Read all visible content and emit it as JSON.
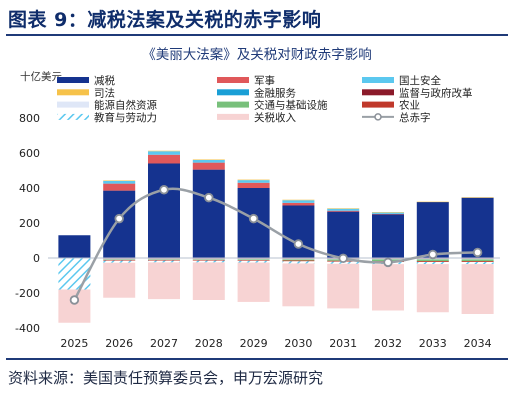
{
  "header": {
    "title": "图表 9：减税法案及关税的赤字影响"
  },
  "footer": {
    "source": "资料来源：美国责任预算委员会，申万宏源研究"
  },
  "chart_data": {
    "type": "bar",
    "title": "《美丽大法案》及关税对财政赤字影响",
    "ylabel": "十亿美元",
    "ylim": [
      -400,
      800
    ],
    "yticks": [
      -400,
      -200,
      0,
      200,
      400,
      600,
      800
    ],
    "categories": [
      "2025",
      "2026",
      "2027",
      "2028",
      "2029",
      "2030",
      "2031",
      "2032",
      "2033",
      "2034"
    ],
    "legend_position": "top",
    "series": [
      {
        "name": "减税",
        "color": "#15338f",
        "pattern": "solid",
        "values": [
          130,
          385,
          540,
          505,
          400,
          300,
          265,
          250,
          320,
          345
        ]
      },
      {
        "name": "军事",
        "color": "#e0585a",
        "pattern": "solid",
        "values": [
          0,
          40,
          50,
          40,
          30,
          15,
          5,
          2,
          0,
          0
        ]
      },
      {
        "name": "国土安全",
        "color": "#5bc8ef",
        "pattern": "solid",
        "values": [
          0,
          15,
          20,
          15,
          15,
          15,
          12,
          8,
          0,
          0
        ]
      },
      {
        "name": "司法",
        "color": "#f6c24a",
        "pattern": "solid",
        "values": [
          0,
          3,
          3,
          3,
          3,
          3,
          2,
          2,
          2,
          2
        ]
      },
      {
        "name": "金融服务",
        "color": "#1a9fd6",
        "pattern": "solid",
        "values": [
          0,
          -2,
          -2,
          -2,
          -2,
          -2,
          -2,
          -2,
          -2,
          -2
        ]
      },
      {
        "name": "监督与政府改革",
        "color": "#8b1a2a",
        "pattern": "solid",
        "values": [
          0,
          -2,
          -2,
          -2,
          -2,
          -2,
          -2,
          -2,
          -2,
          -2
        ]
      },
      {
        "name": "能源自然资源",
        "color": "#dfe7f7",
        "pattern": "solid",
        "values": [
          0,
          -4,
          -4,
          -4,
          -4,
          -4,
          -4,
          -4,
          -4,
          -4
        ]
      },
      {
        "name": "交通与基础设施",
        "color": "#78c07b",
        "pattern": "solid",
        "values": [
          0,
          -3,
          -3,
          -3,
          -4,
          -6,
          -8,
          -10,
          -10,
          -10
        ]
      },
      {
        "name": "农业",
        "color": "#c0392b",
        "pattern": "solid",
        "values": [
          0,
          -4,
          -4,
          -4,
          -4,
          -5,
          -5,
          -5,
          -5,
          -5
        ]
      },
      {
        "name": "教育与劳动力",
        "color": "#5bc8ef",
        "pattern": "hatch",
        "values": [
          -180,
          -12,
          -10,
          -10,
          -10,
          -12,
          -12,
          -12,
          -12,
          -12
        ]
      },
      {
        "name": "关税收入",
        "color": "#f7d3d3",
        "pattern": "solid",
        "values": [
          -190,
          -200,
          -210,
          -215,
          -225,
          -245,
          -255,
          -265,
          -275,
          -285
        ]
      }
    ],
    "line": {
      "name": "总赤字",
      "color": "#9aa0a6",
      "values": [
        -240,
        225,
        390,
        345,
        225,
        80,
        -2,
        -25,
        20,
        32
      ]
    }
  }
}
